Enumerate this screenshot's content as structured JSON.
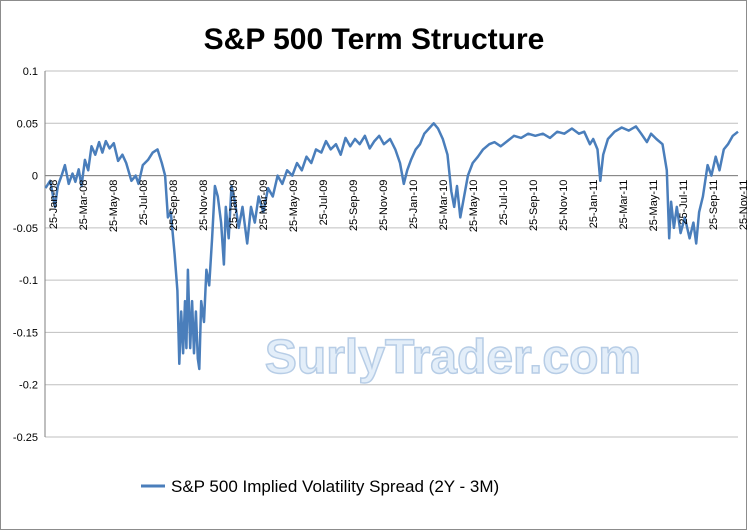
{
  "chart_data": {
    "type": "line",
    "title": "S&P 500 Term Structure",
    "xlabel": "",
    "ylabel": "",
    "ylim": [
      -0.25,
      0.1
    ],
    "yticks": [
      "0.1",
      "0.05",
      "0",
      "-0.05",
      "-0.1",
      "-0.15",
      "-0.2",
      "-0.25"
    ],
    "ytick_values": [
      0.1,
      0.05,
      0,
      -0.05,
      -0.1,
      -0.15,
      -0.2,
      -0.25
    ],
    "xticks": [
      "25-Jan-08",
      "25-Mar-08",
      "25-May-08",
      "25-Jul-08",
      "25-Sep-08",
      "25-Nov-08",
      "25-Jan-09",
      "25-Mar-09",
      "25-May-09",
      "25-Jul-09",
      "25-Sep-09",
      "25-Nov-09",
      "25-Jan-10",
      "25-Mar-10",
      "25-May-10",
      "25-Jul-10",
      "25-Sep-10",
      "25-Nov-10",
      "25-Jan-11",
      "25-Mar-11",
      "25-May-11",
      "25-Jul-11",
      "25-Sep-11",
      "25-Nov-11"
    ],
    "xlim": [
      "2008-01-01",
      "2011-12-31"
    ],
    "grid": "horizontal",
    "legend_position": "bottom",
    "watermark": "SurlyTrader.com",
    "series": [
      {
        "name": "S&P 500 Implied Volatility Spread (2Y - 3M)",
        "color": "#4a7ebb",
        "points": [
          [
            "2008-01-02",
            -0.012
          ],
          [
            "2008-01-12",
            -0.005
          ],
          [
            "2008-01-22",
            -0.03
          ],
          [
            "2008-01-28",
            -0.01
          ],
          [
            "2008-02-05",
            0.0
          ],
          [
            "2008-02-12",
            0.01
          ],
          [
            "2008-02-20",
            -0.008
          ],
          [
            "2008-02-28",
            0.002
          ],
          [
            "2008-03-05",
            -0.006
          ],
          [
            "2008-03-12",
            0.006
          ],
          [
            "2008-03-18",
            -0.01
          ],
          [
            "2008-03-25",
            0.015
          ],
          [
            "2008-04-01",
            0.005
          ],
          [
            "2008-04-08",
            0.028
          ],
          [
            "2008-04-16",
            0.02
          ],
          [
            "2008-04-24",
            0.032
          ],
          [
            "2008-05-01",
            0.022
          ],
          [
            "2008-05-08",
            0.033
          ],
          [
            "2008-05-16",
            0.026
          ],
          [
            "2008-05-25",
            0.031
          ],
          [
            "2008-06-03",
            0.014
          ],
          [
            "2008-06-12",
            0.02
          ],
          [
            "2008-06-20",
            0.012
          ],
          [
            "2008-07-01",
            -0.005
          ],
          [
            "2008-07-10",
            0.0
          ],
          [
            "2008-07-16",
            -0.008
          ],
          [
            "2008-07-25",
            0.01
          ],
          [
            "2008-08-05",
            0.015
          ],
          [
            "2008-08-15",
            0.022
          ],
          [
            "2008-08-25",
            0.025
          ],
          [
            "2008-09-03",
            0.012
          ],
          [
            "2008-09-10",
            0.0
          ],
          [
            "2008-09-16",
            -0.04
          ],
          [
            "2008-09-22",
            -0.035
          ],
          [
            "2008-09-30",
            -0.075
          ],
          [
            "2008-10-06",
            -0.11
          ],
          [
            "2008-10-10",
            -0.18
          ],
          [
            "2008-10-14",
            -0.13
          ],
          [
            "2008-10-18",
            -0.17
          ],
          [
            "2008-10-22",
            -0.12
          ],
          [
            "2008-10-25",
            -0.165
          ],
          [
            "2008-10-28",
            -0.09
          ],
          [
            "2008-11-02",
            -0.165
          ],
          [
            "2008-11-06",
            -0.12
          ],
          [
            "2008-11-10",
            -0.17
          ],
          [
            "2008-11-14",
            -0.13
          ],
          [
            "2008-11-18",
            -0.175
          ],
          [
            "2008-11-21",
            -0.185
          ],
          [
            "2008-11-25",
            -0.12
          ],
          [
            "2008-12-01",
            -0.14
          ],
          [
            "2008-12-06",
            -0.09
          ],
          [
            "2008-12-12",
            -0.105
          ],
          [
            "2008-12-18",
            -0.06
          ],
          [
            "2008-12-24",
            -0.01
          ],
          [
            "2008-12-30",
            -0.02
          ],
          [
            "2009-01-06",
            -0.045
          ],
          [
            "2009-01-12",
            -0.085
          ],
          [
            "2009-01-16",
            -0.03
          ],
          [
            "2009-01-22",
            -0.06
          ],
          [
            "2009-01-28",
            -0.01
          ],
          [
            "2009-02-04",
            -0.025
          ],
          [
            "2009-02-12",
            -0.05
          ],
          [
            "2009-02-20",
            -0.03
          ],
          [
            "2009-03-02",
            -0.065
          ],
          [
            "2009-03-10",
            -0.03
          ],
          [
            "2009-03-18",
            -0.045
          ],
          [
            "2009-03-26",
            -0.02
          ],
          [
            "2009-04-05",
            -0.035
          ],
          [
            "2009-04-15",
            -0.012
          ],
          [
            "2009-04-25",
            -0.02
          ],
          [
            "2009-05-05",
            0.0
          ],
          [
            "2009-05-15",
            -0.008
          ],
          [
            "2009-05-25",
            0.005
          ],
          [
            "2009-06-05",
            0.0
          ],
          [
            "2009-06-15",
            0.012
          ],
          [
            "2009-06-25",
            0.005
          ],
          [
            "2009-07-05",
            0.018
          ],
          [
            "2009-07-15",
            0.012
          ],
          [
            "2009-07-25",
            0.025
          ],
          [
            "2009-08-05",
            0.022
          ],
          [
            "2009-08-15",
            0.033
          ],
          [
            "2009-08-25",
            0.025
          ],
          [
            "2009-09-05",
            0.03
          ],
          [
            "2009-09-15",
            0.02
          ],
          [
            "2009-09-25",
            0.036
          ],
          [
            "2009-10-05",
            0.028
          ],
          [
            "2009-10-15",
            0.035
          ],
          [
            "2009-10-25",
            0.03
          ],
          [
            "2009-11-05",
            0.038
          ],
          [
            "2009-11-15",
            0.026
          ],
          [
            "2009-11-25",
            0.033
          ],
          [
            "2009-12-05",
            0.038
          ],
          [
            "2009-12-15",
            0.03
          ],
          [
            "2009-12-28",
            0.035
          ],
          [
            "2010-01-08",
            0.025
          ],
          [
            "2010-01-18",
            0.012
          ],
          [
            "2010-01-26",
            -0.008
          ],
          [
            "2010-02-02",
            0.005
          ],
          [
            "2010-02-10",
            0.015
          ],
          [
            "2010-02-20",
            0.025
          ],
          [
            "2010-03-01",
            0.03
          ],
          [
            "2010-03-10",
            0.04
          ],
          [
            "2010-03-20",
            0.045
          ],
          [
            "2010-03-30",
            0.05
          ],
          [
            "2010-04-08",
            0.045
          ],
          [
            "2010-04-18",
            0.035
          ],
          [
            "2010-04-28",
            0.02
          ],
          [
            "2010-05-06",
            -0.015
          ],
          [
            "2010-05-12",
            -0.03
          ],
          [
            "2010-05-18",
            -0.01
          ],
          [
            "2010-05-25",
            -0.04
          ],
          [
            "2010-06-02",
            -0.02
          ],
          [
            "2010-06-10",
            0.0
          ],
          [
            "2010-06-20",
            0.012
          ],
          [
            "2010-07-01",
            0.018
          ],
          [
            "2010-07-12",
            0.025
          ],
          [
            "2010-07-25",
            0.03
          ],
          [
            "2010-08-05",
            0.032
          ],
          [
            "2010-08-18",
            0.028
          ],
          [
            "2010-09-01",
            0.033
          ],
          [
            "2010-09-15",
            0.038
          ],
          [
            "2010-09-30",
            0.036
          ],
          [
            "2010-10-15",
            0.04
          ],
          [
            "2010-10-30",
            0.038
          ],
          [
            "2010-11-15",
            0.04
          ],
          [
            "2010-11-30",
            0.036
          ],
          [
            "2010-12-15",
            0.042
          ],
          [
            "2010-12-30",
            0.04
          ],
          [
            "2011-01-15",
            0.045
          ],
          [
            "2011-01-30",
            0.04
          ],
          [
            "2011-02-10",
            0.042
          ],
          [
            "2011-02-22",
            0.03
          ],
          [
            "2011-03-01",
            0.035
          ],
          [
            "2011-03-10",
            0.025
          ],
          [
            "2011-03-16",
            -0.005
          ],
          [
            "2011-03-22",
            0.02
          ],
          [
            "2011-04-01",
            0.035
          ],
          [
            "2011-04-15",
            0.042
          ],
          [
            "2011-04-30",
            0.046
          ],
          [
            "2011-05-15",
            0.043
          ],
          [
            "2011-05-30",
            0.047
          ],
          [
            "2011-06-10",
            0.04
          ],
          [
            "2011-06-22",
            0.032
          ],
          [
            "2011-07-01",
            0.04
          ],
          [
            "2011-07-12",
            0.035
          ],
          [
            "2011-07-25",
            0.03
          ],
          [
            "2011-08-03",
            0.005
          ],
          [
            "2011-08-08",
            -0.06
          ],
          [
            "2011-08-12",
            -0.025
          ],
          [
            "2011-08-18",
            -0.05
          ],
          [
            "2011-08-24",
            -0.03
          ],
          [
            "2011-09-01",
            -0.055
          ],
          [
            "2011-09-10",
            -0.04
          ],
          [
            "2011-09-20",
            -0.06
          ],
          [
            "2011-09-28",
            -0.045
          ],
          [
            "2011-10-04",
            -0.065
          ],
          [
            "2011-10-10",
            -0.035
          ],
          [
            "2011-10-18",
            -0.02
          ],
          [
            "2011-10-28",
            0.01
          ],
          [
            "2011-11-05",
            0.0
          ],
          [
            "2011-11-14",
            0.018
          ],
          [
            "2011-11-22",
            0.005
          ],
          [
            "2011-12-01",
            0.025
          ],
          [
            "2011-12-10",
            0.03
          ],
          [
            "2011-12-20",
            0.038
          ],
          [
            "2011-12-31",
            0.042
          ]
        ]
      }
    ]
  }
}
